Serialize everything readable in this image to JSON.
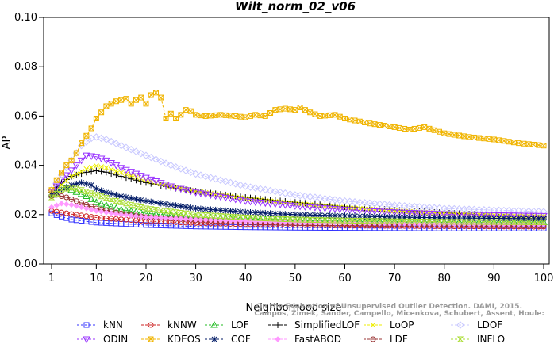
{
  "chart_data": {
    "type": "line",
    "title": "Wilt_norm_02_v06",
    "xlabel": "Neighborhood size",
    "ylabel": "AP",
    "xlim": [
      1,
      100
    ],
    "ylim": [
      0,
      0.1
    ],
    "x_ticks": [
      "1",
      "10",
      "20",
      "30",
      "40",
      "50",
      "60",
      "70",
      "80",
      "90",
      "100"
    ],
    "y_ticks": [
      "0.00",
      "0.02",
      "0.04",
      "0.06",
      "0.08",
      "0.10"
    ],
    "legend_position": "bottom",
    "series": [
      {
        "name": "kNN",
        "color": "#3333ff",
        "marker": "square",
        "points": [
          [
            1,
            0.0205
          ],
          [
            2,
            0.0198
          ],
          [
            5,
            0.018
          ],
          [
            10,
            0.0168
          ],
          [
            20,
            0.0158
          ],
          [
            30,
            0.0152
          ],
          [
            40,
            0.0149
          ],
          [
            50,
            0.0147
          ],
          [
            60,
            0.0146
          ],
          [
            70,
            0.0145
          ],
          [
            80,
            0.0144
          ],
          [
            90,
            0.0144
          ],
          [
            100,
            0.0144
          ]
        ]
      },
      {
        "name": "kNNW",
        "color": "#cc2222",
        "marker": "circle",
        "points": [
          [
            1,
            0.0215
          ],
          [
            2,
            0.0212
          ],
          [
            5,
            0.0202
          ],
          [
            10,
            0.0188
          ],
          [
            20,
            0.0174
          ],
          [
            30,
            0.0166
          ],
          [
            40,
            0.0161
          ],
          [
            50,
            0.0158
          ],
          [
            60,
            0.0156
          ],
          [
            70,
            0.0154
          ],
          [
            80,
            0.0153
          ],
          [
            90,
            0.0152
          ],
          [
            100,
            0.0151
          ]
        ]
      },
      {
        "name": "LOF",
        "color": "#22bb22",
        "marker": "triangle",
        "points": [
          [
            1,
            0.028
          ],
          [
            3,
            0.032
          ],
          [
            5,
            0.03
          ],
          [
            8,
            0.0275
          ],
          [
            10,
            0.025
          ],
          [
            15,
            0.022
          ],
          [
            20,
            0.0205
          ],
          [
            30,
            0.019
          ],
          [
            40,
            0.0183
          ],
          [
            50,
            0.0178
          ],
          [
            60,
            0.0175
          ],
          [
            70,
            0.0173
          ],
          [
            80,
            0.0171
          ],
          [
            90,
            0.017
          ],
          [
            100,
            0.0169
          ]
        ]
      },
      {
        "name": "SimplifiedLOF",
        "color": "#000000",
        "marker": "plus",
        "points": [
          [
            1,
            0.029
          ],
          [
            3,
            0.033
          ],
          [
            5,
            0.0355
          ],
          [
            8,
            0.0372
          ],
          [
            10,
            0.0378
          ],
          [
            12,
            0.0372
          ],
          [
            15,
            0.0355
          ],
          [
            20,
            0.033
          ],
          [
            25,
            0.031
          ],
          [
            30,
            0.0295
          ],
          [
            40,
            0.027
          ],
          [
            50,
            0.025
          ],
          [
            60,
            0.0232
          ],
          [
            70,
            0.0218
          ],
          [
            80,
            0.0207
          ],
          [
            90,
            0.0197
          ],
          [
            100,
            0.019
          ]
        ]
      },
      {
        "name": "LoOP",
        "color": "#eeee00",
        "marker": "x",
        "points": [
          [
            1,
            0.028
          ],
          [
            3,
            0.032
          ],
          [
            5,
            0.0355
          ],
          [
            8,
            0.0385
          ],
          [
            10,
            0.0398
          ],
          [
            12,
            0.039
          ],
          [
            15,
            0.037
          ],
          [
            20,
            0.034
          ],
          [
            25,
            0.0315
          ],
          [
            30,
            0.0295
          ],
          [
            40,
            0.0265
          ],
          [
            50,
            0.0245
          ],
          [
            60,
            0.0228
          ],
          [
            70,
            0.0215
          ],
          [
            80,
            0.0205
          ],
          [
            90,
            0.0198
          ],
          [
            100,
            0.0193
          ]
        ]
      },
      {
        "name": "LDOF",
        "color": "#c8c8ff",
        "marker": "diamond",
        "points": [
          [
            1,
            0.03
          ],
          [
            3,
            0.036
          ],
          [
            5,
            0.042
          ],
          [
            7,
            0.048
          ],
          [
            9,
            0.051
          ],
          [
            10,
            0.0515
          ],
          [
            12,
            0.0505
          ],
          [
            15,
            0.048
          ],
          [
            20,
            0.044
          ],
          [
            25,
            0.04
          ],
          [
            30,
            0.0365
          ],
          [
            40,
            0.0315
          ],
          [
            50,
            0.028
          ],
          [
            60,
            0.0255
          ],
          [
            70,
            0.0238
          ],
          [
            80,
            0.0225
          ],
          [
            90,
            0.0218
          ],
          [
            100,
            0.0212
          ]
        ]
      },
      {
        "name": "ODIN",
        "color": "#9933ff",
        "marker": "triangle-down",
        "points": [
          [
            1,
            0.029
          ],
          [
            3,
            0.034
          ],
          [
            5,
            0.038
          ],
          [
            7,
            0.042
          ],
          [
            8,
            0.044
          ],
          [
            10,
            0.0435
          ],
          [
            12,
            0.042
          ],
          [
            15,
            0.039
          ],
          [
            20,
            0.035
          ],
          [
            25,
            0.0315
          ],
          [
            30,
            0.029
          ],
          [
            40,
            0.0255
          ],
          [
            50,
            0.0235
          ],
          [
            60,
            0.022
          ],
          [
            70,
            0.021
          ],
          [
            80,
            0.0202
          ],
          [
            90,
            0.0198
          ],
          [
            100,
            0.0195
          ]
        ]
      },
      {
        "name": "KDEOS",
        "color": "#f0b400",
        "marker": "box-x",
        "points": [
          [
            1,
            0.03
          ],
          [
            2,
            0.034
          ],
          [
            3,
            0.037
          ],
          [
            4,
            0.04
          ],
          [
            5,
            0.042
          ],
          [
            6,
            0.045
          ],
          [
            7,
            0.049
          ],
          [
            8,
            0.052
          ],
          [
            9,
            0.055
          ],
          [
            10,
            0.059
          ],
          [
            11,
            0.0615
          ],
          [
            12,
            0.064
          ],
          [
            13,
            0.065
          ],
          [
            14,
            0.066
          ],
          [
            15,
            0.0665
          ],
          [
            16,
            0.067
          ],
          [
            17,
            0.065
          ],
          [
            18,
            0.0665
          ],
          [
            19,
            0.0675
          ],
          [
            20,
            0.065
          ],
          [
            21,
            0.0685
          ],
          [
            22,
            0.0695
          ],
          [
            23,
            0.0675
          ],
          [
            24,
            0.059
          ],
          [
            25,
            0.061
          ],
          [
            26,
            0.059
          ],
          [
            27,
            0.0605
          ],
          [
            28,
            0.0625
          ],
          [
            29,
            0.062
          ],
          [
            30,
            0.0605
          ],
          [
            32,
            0.06
          ],
          [
            35,
            0.0605
          ],
          [
            38,
            0.06
          ],
          [
            40,
            0.0595
          ],
          [
            42,
            0.0605
          ],
          [
            44,
            0.06
          ],
          [
            46,
            0.0625
          ],
          [
            48,
            0.063
          ],
          [
            50,
            0.0625
          ],
          [
            51,
            0.0635
          ],
          [
            53,
            0.0615
          ],
          [
            55,
            0.06
          ],
          [
            58,
            0.0605
          ],
          [
            60,
            0.059
          ],
          [
            65,
            0.057
          ],
          [
            70,
            0.0555
          ],
          [
            73,
            0.0545
          ],
          [
            76,
            0.0555
          ],
          [
            80,
            0.053
          ],
          [
            85,
            0.0515
          ],
          [
            90,
            0.0505
          ],
          [
            95,
            0.049
          ],
          [
            100,
            0.048
          ]
        ]
      },
      {
        "name": "LDF",
        "color": "#993333",
        "marker": "circle-dot",
        "points": [
          [
            1,
            0.0275
          ],
          [
            2,
            0.028
          ],
          [
            4,
            0.027
          ],
          [
            6,
            0.0255
          ],
          [
            8,
            0.024
          ],
          [
            10,
            0.0225
          ],
          [
            15,
            0.0205
          ],
          [
            20,
            0.019
          ],
          [
            30,
            0.0178
          ],
          [
            40,
            0.017
          ],
          [
            50,
            0.0165
          ],
          [
            60,
            0.0162
          ],
          [
            70,
            0.016
          ],
          [
            80,
            0.0158
          ],
          [
            90,
            0.0157
          ],
          [
            100,
            0.0156
          ]
        ]
      },
      {
        "name": "COF",
        "color": "#001a66",
        "marker": "star",
        "points": [
          [
            1,
            0.028
          ],
          [
            3,
            0.03
          ],
          [
            5,
            0.032
          ],
          [
            7,
            0.033
          ],
          [
            9,
            0.032
          ],
          [
            10,
            0.0305
          ],
          [
            12,
            0.029
          ],
          [
            15,
            0.0275
          ],
          [
            20,
            0.0255
          ],
          [
            25,
            0.024
          ],
          [
            30,
            0.0225
          ],
          [
            40,
            0.021
          ],
          [
            50,
            0.02
          ],
          [
            60,
            0.0195
          ],
          [
            70,
            0.019
          ],
          [
            80,
            0.0187
          ],
          [
            90,
            0.0185
          ],
          [
            100,
            0.0183
          ]
        ]
      },
      {
        "name": "FastABOD",
        "color": "#ff99ff",
        "marker": "diamond-filled",
        "points": [
          [
            1,
            0.023
          ],
          [
            3,
            0.0245
          ],
          [
            5,
            0.024
          ],
          [
            8,
            0.0225
          ],
          [
            10,
            0.0215
          ],
          [
            15,
            0.02
          ],
          [
            20,
            0.019
          ],
          [
            30,
            0.018
          ],
          [
            40,
            0.0174
          ],
          [
            50,
            0.017
          ],
          [
            60,
            0.0167
          ],
          [
            70,
            0.0165
          ],
          [
            80,
            0.0163
          ],
          [
            90,
            0.0162
          ],
          [
            100,
            0.0161
          ]
        ]
      },
      {
        "name": "INFLO",
        "color": "#aadd33",
        "marker": "hourglass",
        "points": [
          [
            1,
            0.027
          ],
          [
            3,
            0.03
          ],
          [
            5,
            0.031
          ],
          [
            7,
            0.03
          ],
          [
            10,
            0.028
          ],
          [
            15,
            0.025
          ],
          [
            20,
            0.0225
          ],
          [
            30,
            0.02
          ],
          [
            40,
            0.0188
          ],
          [
            50,
            0.018
          ],
          [
            60,
            0.0176
          ],
          [
            70,
            0.0173
          ],
          [
            80,
            0.0171
          ],
          [
            90,
            0.017
          ],
          [
            100,
            0.0169
          ]
        ]
      }
    ],
    "credit_lines": [
      "Campos, Zimek, Sander, Campello, Micenkova, Schubert, Assent, Houle:",
      "On the Evaluation of Unsupervised Outlier Detection. DAMI, 2015."
    ]
  }
}
